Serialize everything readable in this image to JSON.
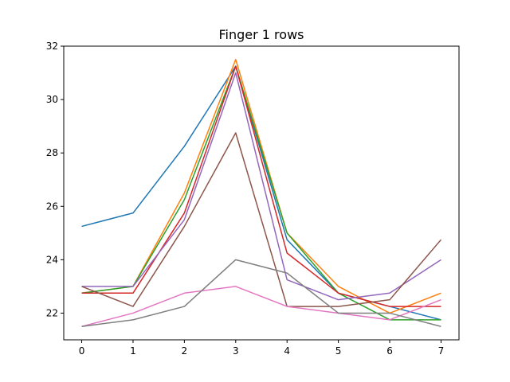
{
  "chart_data": {
    "type": "line",
    "title": "Finger 1 rows",
    "xlabel": "",
    "ylabel": "",
    "x": [
      0,
      1,
      2,
      3,
      4,
      5,
      6,
      7
    ],
    "xlim": [
      -0.35,
      7.35
    ],
    "ylim": [
      21,
      32
    ],
    "xticks": [
      "0",
      "1",
      "2",
      "3",
      "4",
      "5",
      "6",
      "7"
    ],
    "yticks": [
      "22",
      "24",
      "26",
      "28",
      "30",
      "32"
    ],
    "grid": false,
    "legend": false,
    "series": [
      {
        "color": "#1f77b4",
        "values": [
          25.25,
          25.75,
          28.25,
          31.25,
          24.75,
          22.75,
          22.25,
          21.75
        ]
      },
      {
        "color": "#ff7f0e",
        "values": [
          22.75,
          23.0,
          26.5,
          31.5,
          25.0,
          23.0,
          22.0,
          22.75
        ]
      },
      {
        "color": "#2ca02c",
        "values": [
          22.75,
          23.0,
          26.25,
          31.25,
          25.0,
          22.75,
          21.75,
          21.75
        ]
      },
      {
        "color": "#d62728",
        "values": [
          22.75,
          22.75,
          25.75,
          31.25,
          24.25,
          22.75,
          22.25,
          22.25
        ]
      },
      {
        "color": "#9467bd",
        "values": [
          23.0,
          23.0,
          25.5,
          31.0,
          23.25,
          22.5,
          22.75,
          24.0
        ]
      },
      {
        "color": "#8c564b",
        "values": [
          23.0,
          22.25,
          25.25,
          28.75,
          22.25,
          22.25,
          22.5,
          24.75
        ]
      },
      {
        "color": "#e377c2",
        "values": [
          21.5,
          22.0,
          22.75,
          23.0,
          22.25,
          22.0,
          21.75,
          22.5
        ]
      },
      {
        "color": "#7f7f7f",
        "values": [
          21.5,
          21.75,
          22.25,
          24.0,
          23.5,
          22.0,
          22.0,
          21.5
        ]
      }
    ]
  }
}
